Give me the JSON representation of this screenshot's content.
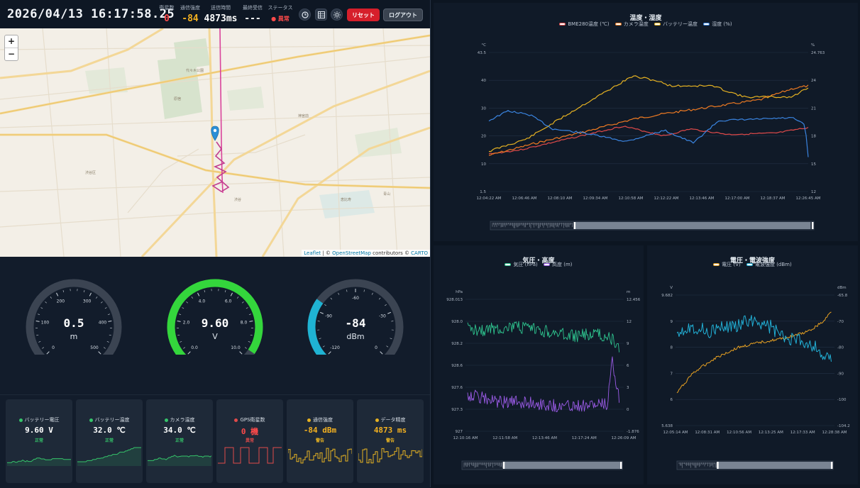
{
  "header": {
    "datetime": "2026/04/13 16:17:58.25",
    "stats": [
      {
        "label": "衛星数",
        "value": "0",
        "color": "#ff4a4a"
      },
      {
        "label": "通信強度",
        "value": "-84",
        "color": "#f4b120"
      },
      {
        "label": "送信時間",
        "value": "4873ms",
        "color": "#ffffff"
      },
      {
        "label": "最終受信",
        "value": "---",
        "color": "#ffffff"
      },
      {
        "label": "ステータス",
        "value": "● 異常",
        "color": "#ff4a4a"
      }
    ],
    "icons": [
      "clock-icon",
      "table-icon",
      "sun-icon"
    ],
    "reset_label": "リセット",
    "logout_label": "ログアウト"
  },
  "map": {
    "zoom_in": "+",
    "zoom_out": "−",
    "attribution": {
      "leaflet": "Leaflet",
      "sep1": " | © ",
      "osm": "OpenStreetMap",
      "mid": " contributors © ",
      "carto": "CARTO"
    },
    "labels": [
      "渋谷区",
      "代々木公園",
      "原宿",
      "神宮前",
      "渋谷",
      "恵比寿",
      "青山"
    ]
  },
  "gauges": [
    {
      "value": "0.5",
      "unit": "m",
      "min": 0,
      "max": 500,
      "current": 0.5,
      "ticks": [
        "0",
        "100",
        "200",
        "300",
        "400",
        "500"
      ],
      "color": "#7b8594"
    },
    {
      "value": "9.60",
      "unit": "V",
      "min": 0,
      "max": 10,
      "current": 9.6,
      "ticks": [
        "0.0",
        "2.0",
        "4.0",
        "6.0",
        "8.0",
        "10.0"
      ],
      "color": "#34d63c"
    },
    {
      "value": "-84",
      "unit": "dBm",
      "min": -120,
      "max": 0,
      "current": -84,
      "ticks": [
        "-120",
        "-90",
        "-60",
        "-30",
        "0"
      ],
      "color": "#1fb3d3"
    }
  ],
  "cards": [
    {
      "title": "バッテリー電圧",
      "value": "9.60 V",
      "status": "正常",
      "color": "#35c46a",
      "valcolor": "#ffffff"
    },
    {
      "title": "バッテリー温度",
      "value": "32.0 ℃",
      "status": "正常",
      "color": "#35c46a",
      "valcolor": "#ffffff"
    },
    {
      "title": "カメラ温度",
      "value": "34.0 ℃",
      "status": "正常",
      "color": "#35c46a",
      "valcolor": "#ffffff"
    },
    {
      "title": "GPS衛星数",
      "value": "0 機",
      "status": "異常",
      "color": "#e04a4a",
      "valcolor": "#ff4a4a"
    },
    {
      "title": "通信強度",
      "value": "-84 dBm",
      "status": "警告",
      "color": "#e6b222",
      "valcolor": "#f4b120"
    },
    {
      "title": "データ精度",
      "value": "4873 ms",
      "status": "警告",
      "color": "#e6b222",
      "valcolor": "#f4b120"
    }
  ],
  "charts": {
    "temp": {
      "title": "温度・湿度",
      "legend": [
        {
          "name": "BME280温度 (℃)",
          "color": "#e04a4a"
        },
        {
          "name": "カメラ温度",
          "color": "#ee7a22"
        },
        {
          "name": "バッテリー温度",
          "color": "#e6b222"
        },
        {
          "name": "湿度 (%)",
          "color": "#3a84e0"
        }
      ],
      "yl_unit": "°C",
      "yr_unit": "%",
      "yl_ticks": [
        "43.5",
        "40",
        "30",
        "20",
        "10",
        "1.5"
      ],
      "yr_ticks": [
        "24.763",
        "24",
        "21",
        "18",
        "15",
        "12"
      ],
      "x_ticks": [
        "12:04:22 AM",
        "12:06:46 AM",
        "12:08:10 AM",
        "12:09:34 AM",
        "12:10:58 AM",
        "12:12:22 AM",
        "12:13:46 AM",
        "12:17:00 AM",
        "12:18:37 AM",
        "12:26:45 AM"
      ]
    },
    "pressure": {
      "title": "気圧・高度",
      "legend": [
        {
          "name": "気圧 (hPa)",
          "color": "#2ec38e"
        },
        {
          "name": "高度 (m)",
          "color": "#9a5be6"
        }
      ],
      "yl_unit": "hPa",
      "yr_unit": "m",
      "yl_ticks": [
        "928.013",
        "928.0",
        "928.2",
        "928.6",
        "927.6",
        "927.3",
        "927"
      ],
      "yr_ticks": [
        "12.456",
        "12",
        "9",
        "6",
        "3",
        "0",
        "-1.876"
      ],
      "x_ticks": [
        "12:10:16 AM",
        "12:11:58 AM",
        "12:13:46 AM",
        "12:17:24 AM",
        "12:26:09 AM"
      ]
    },
    "voltage": {
      "title": "電圧・電波強度",
      "legend": [
        {
          "name": "電圧 (V)",
          "color": "#e6a022"
        },
        {
          "name": "電波強度 (dBm)",
          "color": "#22b0d6"
        }
      ],
      "yl_unit": "V",
      "yr_unit": "dBm",
      "yl_ticks": [
        "9.682",
        "9",
        "8",
        "7",
        "6",
        "5.638"
      ],
      "yr_ticks": [
        "-65.8",
        "-70",
        "-80",
        "-90",
        "-100",
        "-104.2"
      ],
      "x_ticks": [
        "12:05:14 AM",
        "12:08:31 AM",
        "12:10:56 AM",
        "12:13:25 AM",
        "12:17:33 AM",
        "12:28:38 AM"
      ]
    }
  }
}
